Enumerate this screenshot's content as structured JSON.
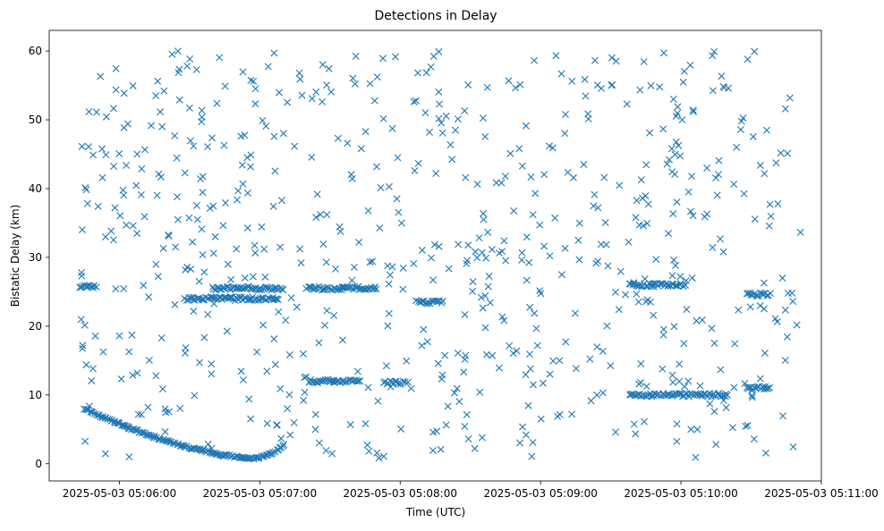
{
  "chart_data": {
    "type": "scatter",
    "title": "Detections in Delay",
    "xlabel": "Time (UTC)",
    "ylabel": "Bistatic Delay (km)",
    "marker": "x",
    "color": "#1f77b4",
    "x_unit": "seconds since 2025-05-03 05:05:30 UTC",
    "xlim": [
      0,
      330
    ],
    "ylim": [
      -2.5,
      63
    ],
    "x_ticks": [
      {
        "value": 30,
        "label": "2025-05-03 05:06:00"
      },
      {
        "value": 90,
        "label": "2025-05-03 05:07:00"
      },
      {
        "value": 150,
        "label": "2025-05-03 05:08:00"
      },
      {
        "value": 210,
        "label": "2025-05-03 05:09:00"
      },
      {
        "value": 270,
        "label": "2025-05-03 05:10:00"
      },
      {
        "value": 330,
        "label": "2025-05-03 05:11:00"
      }
    ],
    "y_ticks": [
      {
        "value": 0,
        "label": "0"
      },
      {
        "value": 10,
        "label": "10"
      },
      {
        "value": 20,
        "label": "20"
      },
      {
        "value": 30,
        "label": "30"
      },
      {
        "value": 40,
        "label": "40"
      },
      {
        "value": 50,
        "label": "50"
      },
      {
        "value": 60,
        "label": "60"
      }
    ],
    "tracks": [
      {
        "name": "descending curve near start",
        "x_range": [
          15,
          88
        ],
        "y_range": [
          8.0,
          0.8
        ]
      },
      {
        "name": "rising curve",
        "x_range": [
          88,
          100
        ],
        "y_range": [
          0.8,
          2.5
        ]
      },
      {
        "name": "track ~25.8 km",
        "x_range": [
          13,
          20
        ],
        "y": 25.8
      },
      {
        "name": "track ~24 km",
        "x_range": [
          58,
          98
        ],
        "y": 24.0
      },
      {
        "name": "track ~25.5 km",
        "x_range": [
          70,
          100
        ],
        "y": 25.5
      },
      {
        "name": "track ~25.5 km (mid)",
        "x_range": [
          110,
          140
        ],
        "y": 25.5
      },
      {
        "name": "track ~12 km",
        "x_range": [
          111,
          133
        ],
        "y": 12.0
      },
      {
        "name": "track ~11.8 km",
        "x_range": [
          143,
          152
        ],
        "y": 11.8
      },
      {
        "name": "track ~23.5 km",
        "x_range": [
          157,
          168
        ],
        "y": 23.5
      },
      {
        "name": "track ~26 km",
        "x_range": [
          248,
          272
        ],
        "y": 26.0
      },
      {
        "name": "track ~10 km",
        "x_range": [
          248,
          290
        ],
        "y": 10.0
      },
      {
        "name": "track ~24.6 km",
        "x_range": [
          298,
          308
        ],
        "y": 24.6
      },
      {
        "name": "track ~11 km",
        "x_range": [
          298,
          308
        ],
        "y": 11.0
      }
    ],
    "random_detections": {
      "count": 680,
      "x_range": [
        13,
        322
      ],
      "y_range": [
        0.5,
        60
      ]
    }
  }
}
